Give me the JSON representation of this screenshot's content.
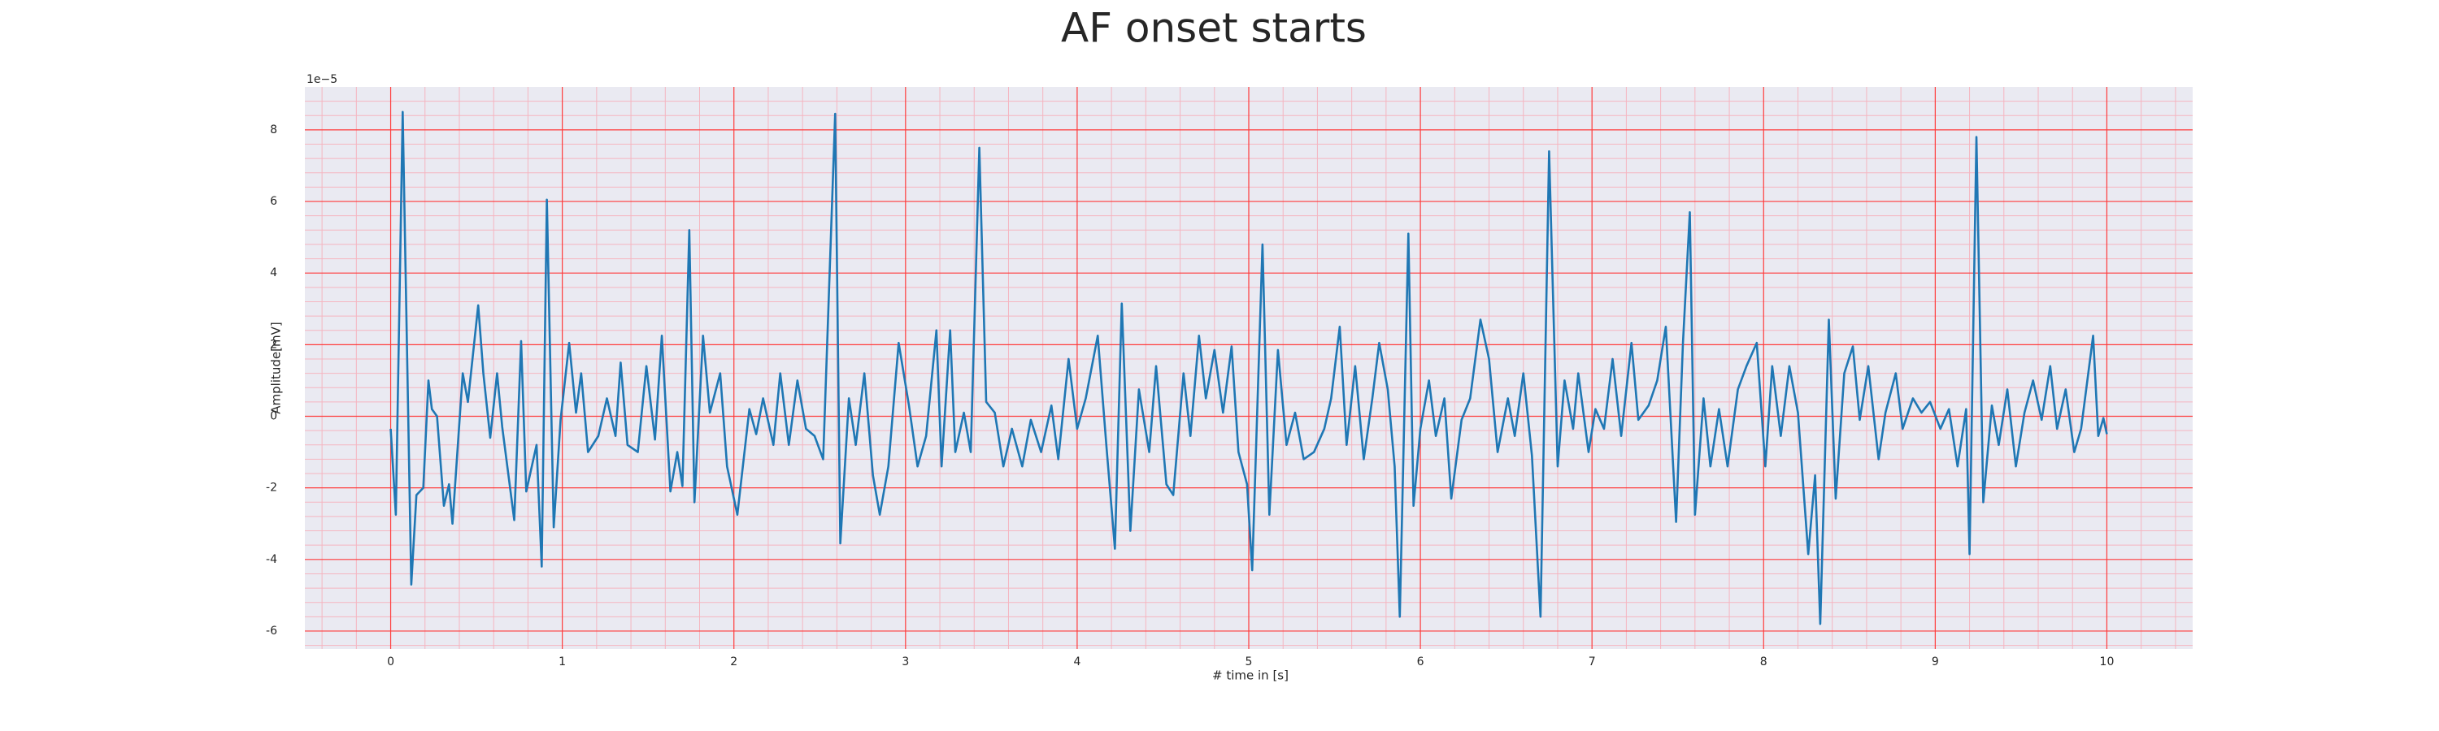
{
  "chart_data": {
    "type": "line",
    "title": "AF onset starts",
    "xlabel": "# time in [s]",
    "ylabel": "Amplitude[mV]",
    "offset_text": "1e−5",
    "xlim": [
      -0.5,
      10.5
    ],
    "ylim": [
      -6.5,
      9.2
    ],
    "xticks": [
      0,
      1,
      2,
      3,
      4,
      5,
      6,
      7,
      8,
      9,
      10
    ],
    "yticks": [
      -6,
      -4,
      -2,
      0,
      2,
      4,
      6,
      8
    ],
    "grid": true,
    "minor_divisions": 5,
    "background": "#eaeaf2",
    "grid_color": "#ff3b3b",
    "minor_grid_color": "#f5b5c0",
    "series": [
      {
        "color": "#1f77b4",
        "x": [
          0,
          0.03,
          0.07,
          0.12,
          0.15,
          0.19,
          0.22,
          0.24,
          0.27,
          0.31,
          0.34,
          0.36,
          0.42,
          0.45,
          0.51,
          0.54,
          0.58,
          0.62,
          0.65,
          0.72,
          0.76,
          0.79,
          0.85,
          0.88,
          0.91,
          0.95,
          0.99,
          1.04,
          1.08,
          1.11,
          1.15,
          1.21,
          1.26,
          1.31,
          1.34,
          1.38,
          1.44,
          1.49,
          1.54,
          1.58,
          1.63,
          1.67,
          1.7,
          1.74,
          1.77,
          1.82,
          1.86,
          1.92,
          1.96,
          2.02,
          2.09,
          2.13,
          2.17,
          2.23,
          2.27,
          2.32,
          2.37,
          2.42,
          2.47,
          2.52,
          2.59,
          2.62,
          2.67,
          2.71,
          2.76,
          2.81,
          2.85,
          2.9,
          2.96,
          3.02,
          3.07,
          3.12,
          3.18,
          3.21,
          3.26,
          3.29,
          3.34,
          3.38,
          3.43,
          3.47,
          3.52,
          3.57,
          3.62,
          3.68,
          3.73,
          3.79,
          3.85,
          3.89,
          3.95,
          4.0,
          4.05,
          4.12,
          4.17,
          4.22,
          4.26,
          4.31,
          4.36,
          4.42,
          4.46,
          4.52,
          4.56,
          4.62,
          4.66,
          4.71,
          4.75,
          4.8,
          4.85,
          4.9,
          4.94,
          4.99,
          5.02,
          5.08,
          5.12,
          5.17,
          5.22,
          5.27,
          5.32,
          5.38,
          5.44,
          5.48,
          5.53,
          5.57,
          5.62,
          5.67,
          5.72,
          5.76,
          5.81,
          5.85,
          5.88,
          5.93,
          5.96,
          6.0,
          6.05,
          6.09,
          6.14,
          6.18,
          6.24,
          6.29,
          6.35,
          6.4,
          6.45,
          6.51,
          6.55,
          6.6,
          6.65,
          6.7,
          6.75,
          6.8,
          6.84,
          6.89,
          6.92,
          6.98,
          7.02,
          7.07,
          7.12,
          7.17,
          7.23,
          7.27,
          7.33,
          7.38,
          7.43,
          7.49,
          7.53,
          7.57,
          7.6,
          7.65,
          7.69,
          7.74,
          7.79,
          7.85,
          7.9,
          7.96,
          8.01,
          8.05,
          8.1,
          8.15,
          8.2,
          8.26,
          8.3,
          8.33,
          8.38,
          8.42,
          8.47,
          8.52,
          8.56,
          8.61,
          8.67,
          8.71,
          8.77,
          8.81,
          8.87,
          8.92,
          8.97,
          9.03,
          9.08,
          9.13,
          9.18,
          9.2,
          9.24,
          9.28,
          9.33,
          9.37,
          9.42,
          9.47,
          9.52,
          9.57,
          9.62,
          9.67,
          9.71,
          9.76,
          9.81,
          9.85,
          9.92,
          9.95,
          9.98,
          10.0
        ],
        "values": [
          -0.35,
          -2.75,
          8.5,
          -4.7,
          -2.2,
          -2.0,
          1.0,
          0.2,
          0,
          -2.5,
          -1.9,
          -3.0,
          1.2,
          0.4,
          3.1,
          1.2,
          -0.6,
          1.2,
          -0.3,
          -2.9,
          2.1,
          -2.1,
          -0.8,
          -4.2,
          6.05,
          -3.1,
          -0.1,
          2.05,
          0.1,
          1.2,
          -1.0,
          -0.55,
          0.5,
          -0.55,
          1.5,
          -0.8,
          -1.0,
          1.4,
          -0.65,
          2.25,
          -2.1,
          -1.0,
          -1.95,
          5.2,
          -2.4,
          2.25,
          0.1,
          1.2,
          -1.4,
          -2.75,
          0.2,
          -0.5,
          0.5,
          -0.8,
          1.2,
          -0.8,
          1.0,
          -0.35,
          -0.55,
          -1.2,
          8.45,
          -3.55,
          0.5,
          -0.8,
          1.2,
          -1.65,
          -2.75,
          -1.4,
          2.05,
          0.3,
          -1.4,
          -0.55,
          2.4,
          -1.4,
          2.4,
          -1.0,
          0.1,
          -1.0,
          7.5,
          0.4,
          0.1,
          -1.4,
          -0.35,
          -1.4,
          -0.1,
          -1.0,
          0.3,
          -1.2,
          1.6,
          -0.35,
          0.5,
          2.25,
          -0.8,
          -3.7,
          3.15,
          -3.2,
          0.75,
          -1.0,
          1.4,
          -1.9,
          -2.2,
          1.2,
          -0.55,
          2.25,
          0.5,
          1.85,
          0.1,
          1.95,
          -1.0,
          -1.9,
          -4.3,
          4.8,
          -2.75,
          1.85,
          -0.8,
          0.1,
          -1.2,
          -1.0,
          -0.35,
          0.5,
          2.5,
          -0.8,
          1.4,
          -1.2,
          0.5,
          2.05,
          0.75,
          -1.4,
          -5.6,
          5.1,
          -2.5,
          -0.35,
          1.0,
          -0.55,
          0.5,
          -2.3,
          -0.1,
          0.5,
          2.7,
          1.6,
          -1.0,
          0.5,
          -0.55,
          1.2,
          -1.1,
          -5.6,
          7.4,
          -1.4,
          1.0,
          -0.35,
          1.2,
          -1.0,
          0.2,
          -0.35,
          1.6,
          -0.55,
          2.05,
          -0.1,
          0.3,
          1.0,
          2.5,
          -2.95,
          2.05,
          5.7,
          -2.75,
          0.5,
          -1.4,
          0.2,
          -1.4,
          0.75,
          1.4,
          2.05,
          -1.4,
          1.4,
          -0.55,
          1.4,
          0.1,
          -3.85,
          -1.65,
          -5.8,
          2.7,
          -2.3,
          1.2,
          1.95,
          -0.1,
          1.4,
          -1.2,
          0.1,
          1.2,
          -0.35,
          0.5,
          0.1,
          0.4,
          -0.35,
          0.2,
          -1.4,
          0.2,
          -3.85,
          7.8,
          -2.4,
          0.3,
          -0.8,
          0.75,
          -1.4,
          0.1,
          1.0,
          -0.1,
          1.4,
          -0.35,
          0.75,
          -1.0,
          -0.35,
          2.25,
          -0.55,
          -0.05,
          -0.5
        ]
      }
    ]
  }
}
